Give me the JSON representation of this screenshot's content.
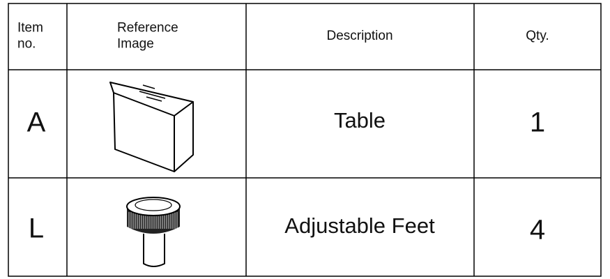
{
  "table": {
    "header": [
      "Item no.",
      "Reference Image",
      "Description",
      "Qty."
    ],
    "rows": [
      [
        "A",
        "Table",
        1
      ],
      [
        "L",
        "Adjustable Feet",
        4
      ]
    ]
  }
}
